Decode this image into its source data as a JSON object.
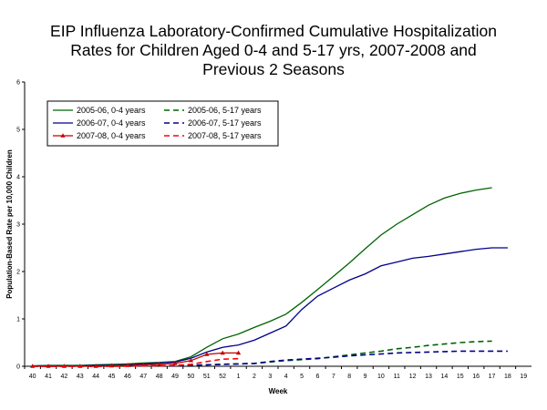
{
  "chart_data": {
    "type": "line",
    "title_lines": [
      "EIP Influenza Laboratory-Confirmed Cumulative Hospitalization",
      "Rates for Children Aged 0-4 and 5-17 yrs, 2007-2008 and",
      "Previous 2 Seasons"
    ],
    "xlabel": "Week",
    "ylabel": "Population-Based Rate per 10,000 Children",
    "categories": [
      "40",
      "41",
      "42",
      "43",
      "44",
      "45",
      "46",
      "47",
      "48",
      "49",
      "50",
      "51",
      "52",
      "1",
      "2",
      "3",
      "4",
      "5",
      "6",
      "7",
      "8",
      "9",
      "10",
      "11",
      "12",
      "13",
      "14",
      "15",
      "16",
      "17",
      "18",
      "19"
    ],
    "ylim": [
      0,
      6
    ],
    "yticks": [
      0,
      1,
      2,
      3,
      4,
      5,
      6
    ],
    "grid": false,
    "legend_position": "top-left inside plot",
    "series": [
      {
        "name": "2005-06, 0-4 years",
        "color": "#006400",
        "dash": "solid",
        "marker": "none",
        "values": [
          0.01,
          0.02,
          0.02,
          0.02,
          0.03,
          0.04,
          0.05,
          0.07,
          0.08,
          0.1,
          0.2,
          0.4,
          0.58,
          0.68,
          0.82,
          0.95,
          1.1,
          1.35,
          1.62,
          1.9,
          2.18,
          2.48,
          2.77,
          3.0,
          3.2,
          3.4,
          3.55,
          3.65,
          3.72,
          3.77,
          null,
          null
        ]
      },
      {
        "name": "2005-06, 5-17 years",
        "color": "#006400",
        "dash": "dashed",
        "marker": "none",
        "values": [
          0.0,
          0.0,
          0.0,
          0.0,
          0.0,
          0.01,
          0.01,
          0.01,
          0.01,
          0.02,
          0.02,
          0.03,
          0.04,
          0.05,
          0.06,
          0.09,
          0.12,
          0.14,
          0.16,
          0.2,
          0.24,
          0.28,
          0.32,
          0.37,
          0.4,
          0.44,
          0.47,
          0.5,
          0.52,
          0.53,
          null,
          null
        ]
      },
      {
        "name": "2006-07, 0-4 years",
        "color": "#00008B",
        "dash": "solid",
        "marker": "none",
        "values": [
          0.01,
          0.01,
          0.01,
          0.01,
          0.02,
          0.02,
          0.03,
          0.05,
          0.07,
          0.09,
          0.17,
          0.3,
          0.4,
          0.45,
          0.55,
          0.7,
          0.85,
          1.2,
          1.48,
          1.65,
          1.82,
          1.95,
          2.12,
          2.2,
          2.28,
          2.32,
          2.37,
          2.42,
          2.47,
          2.5,
          2.5,
          null
        ]
      },
      {
        "name": "2006-07, 5-17 years",
        "color": "#00008B",
        "dash": "dashed",
        "marker": "none",
        "values": [
          0.0,
          0.0,
          0.0,
          0.0,
          0.0,
          0.0,
          0.01,
          0.01,
          0.01,
          0.01,
          0.02,
          0.03,
          0.04,
          0.05,
          0.06,
          0.1,
          0.13,
          0.15,
          0.17,
          0.19,
          0.22,
          0.24,
          0.26,
          0.28,
          0.29,
          0.3,
          0.31,
          0.32,
          0.32,
          0.32,
          0.32,
          null
        ]
      },
      {
        "name": "2007-08, 0-4 years",
        "color": "#C00000",
        "dash": "solid",
        "marker": "triangle",
        "values": [
          0.0,
          0.0,
          0.0,
          0.0,
          0.0,
          0.01,
          0.02,
          0.03,
          0.04,
          0.06,
          0.12,
          0.25,
          0.28,
          0.28,
          null,
          null,
          null,
          null,
          null,
          null,
          null,
          null,
          null,
          null,
          null,
          null,
          null,
          null,
          null,
          null,
          null,
          null
        ]
      },
      {
        "name": "2007-08, 5-17 years",
        "color": "#FF0000",
        "dash": "dashed",
        "marker": "none",
        "values": [
          0.0,
          0.0,
          0.0,
          0.0,
          0.0,
          0.0,
          0.0,
          0.01,
          0.01,
          0.02,
          0.04,
          0.1,
          0.15,
          0.16,
          null,
          null,
          null,
          null,
          null,
          null,
          null,
          null,
          null,
          null,
          null,
          null,
          null,
          null,
          null,
          null,
          null,
          null
        ]
      }
    ]
  }
}
